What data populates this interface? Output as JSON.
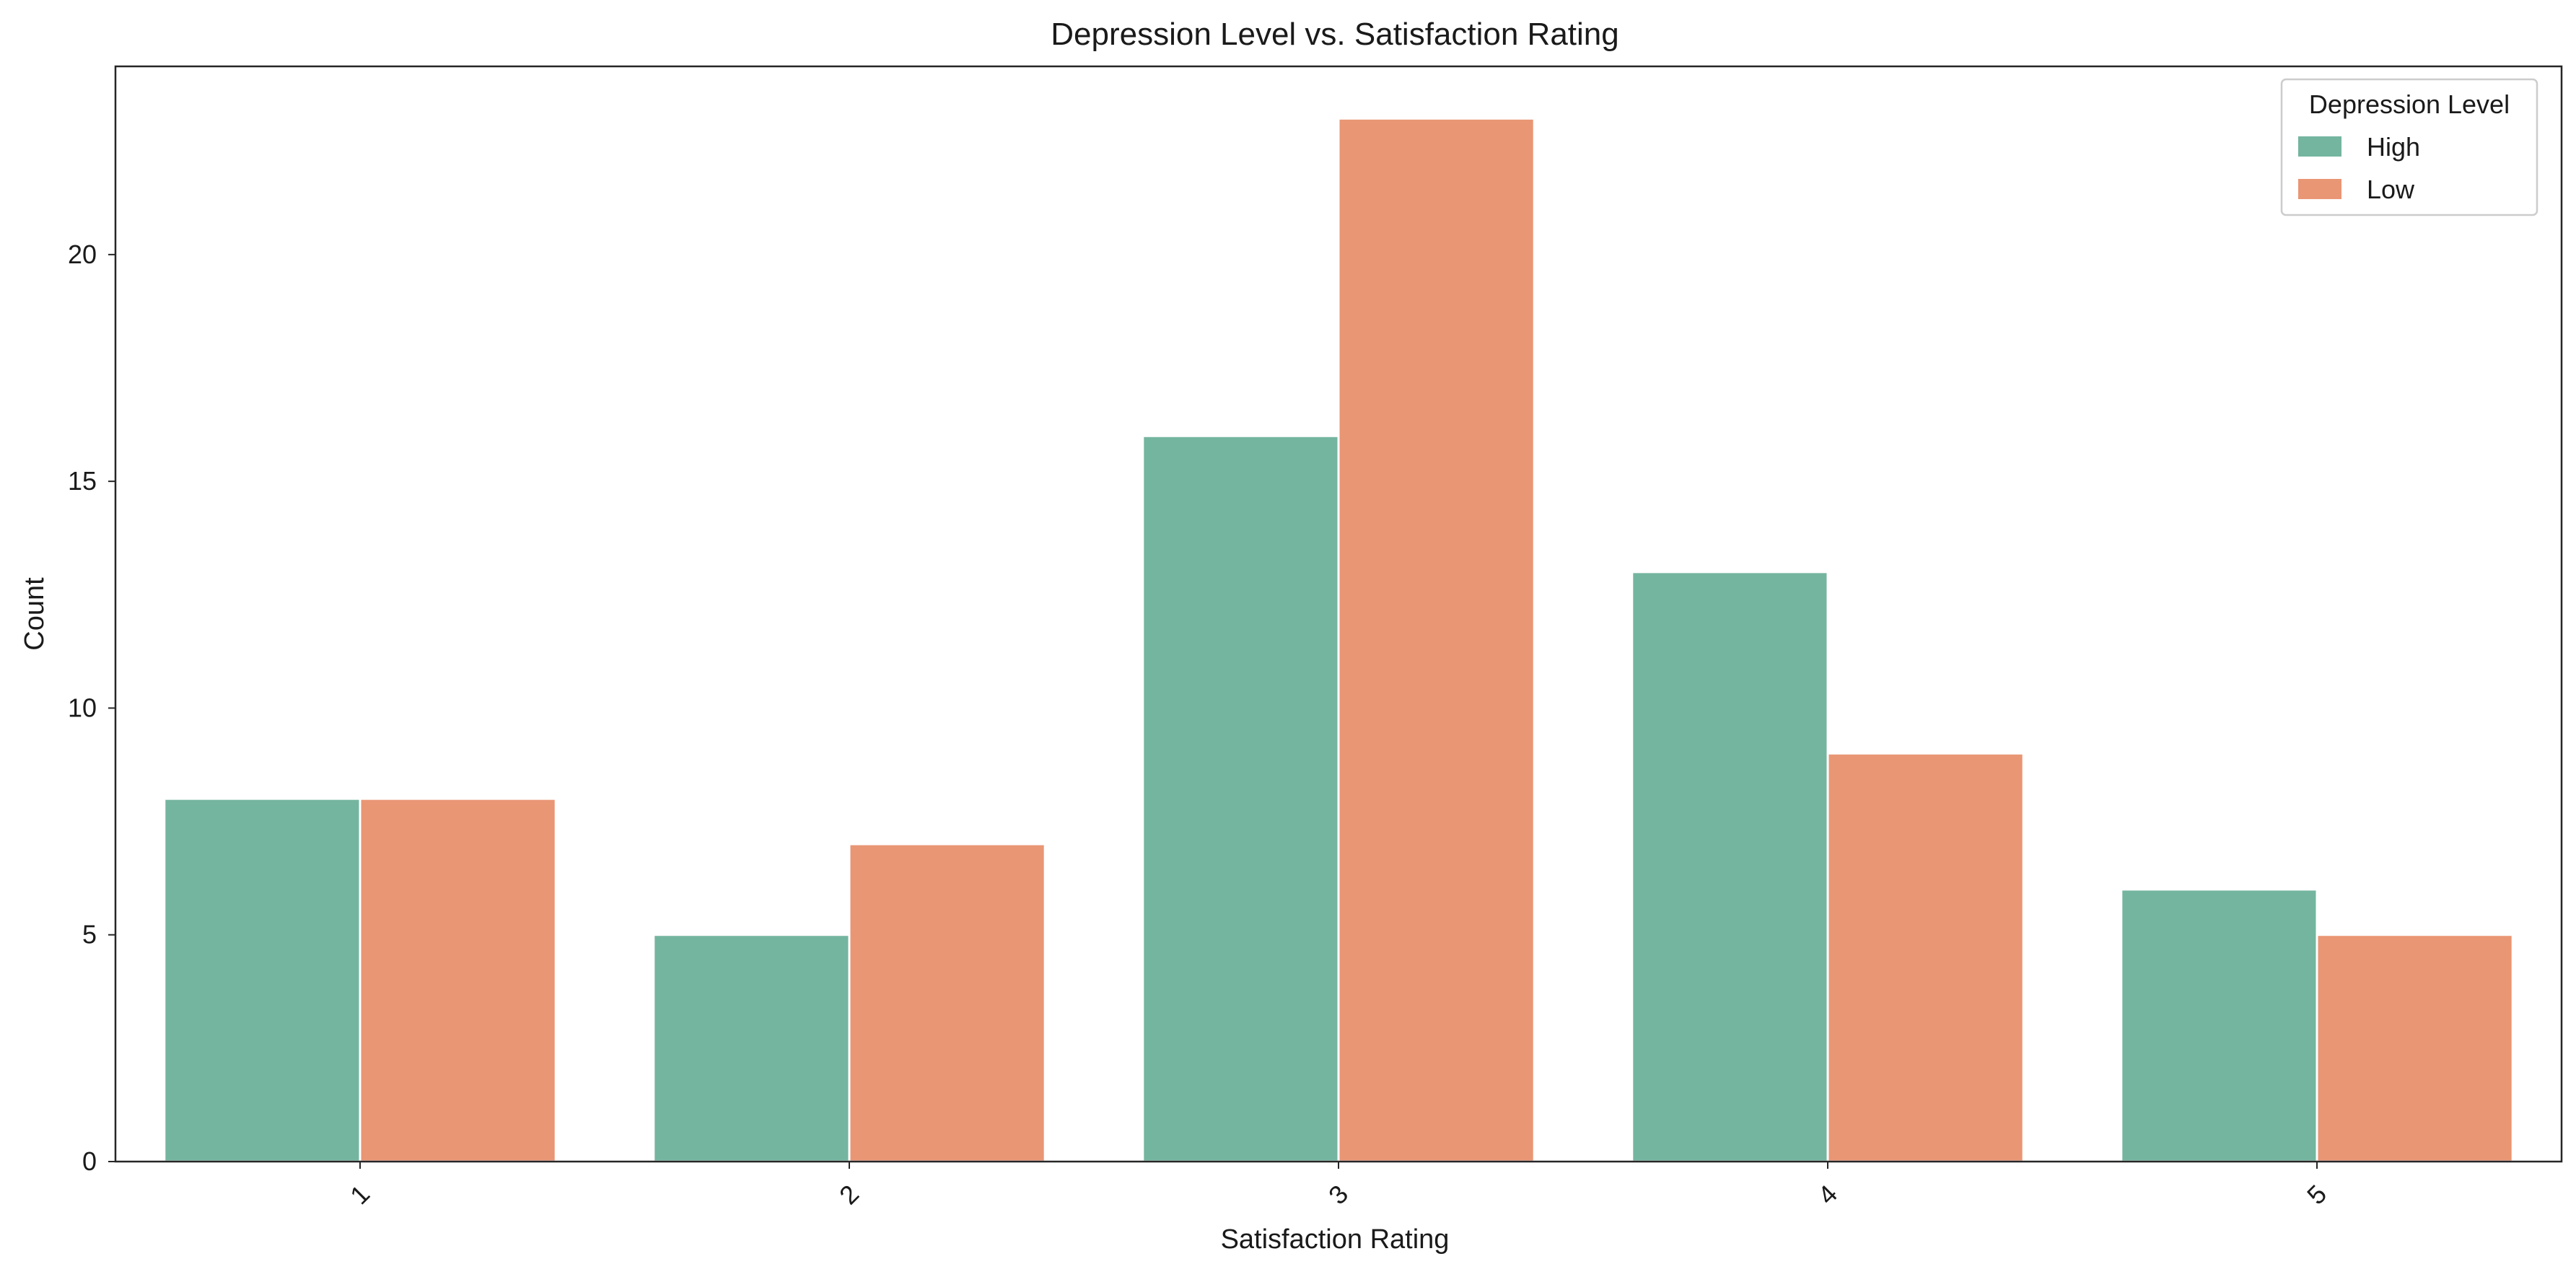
{
  "chart_data": {
    "type": "bar",
    "title": "Depression Level vs. Satisfaction Rating",
    "xlabel": "Satisfaction Rating",
    "ylabel": "Count",
    "categories": [
      "1",
      "2",
      "3",
      "4",
      "5"
    ],
    "ylim": [
      0,
      24.15
    ],
    "yticks": [
      0,
      5,
      10,
      15,
      20
    ],
    "ytick_labels": [
      "0",
      "5",
      "10",
      "15",
      "20"
    ],
    "xtick_rotation": -45,
    "grid": false,
    "legend": {
      "title": "Depression Level",
      "placement": "top-right"
    },
    "series": [
      {
        "name": "High",
        "color": "#74b5a0",
        "values": [
          8,
          5,
          16,
          13,
          6
        ]
      },
      {
        "name": "Low",
        "color": "#e99674",
        "values": [
          8,
          7,
          23,
          9,
          5
        ]
      }
    ]
  }
}
